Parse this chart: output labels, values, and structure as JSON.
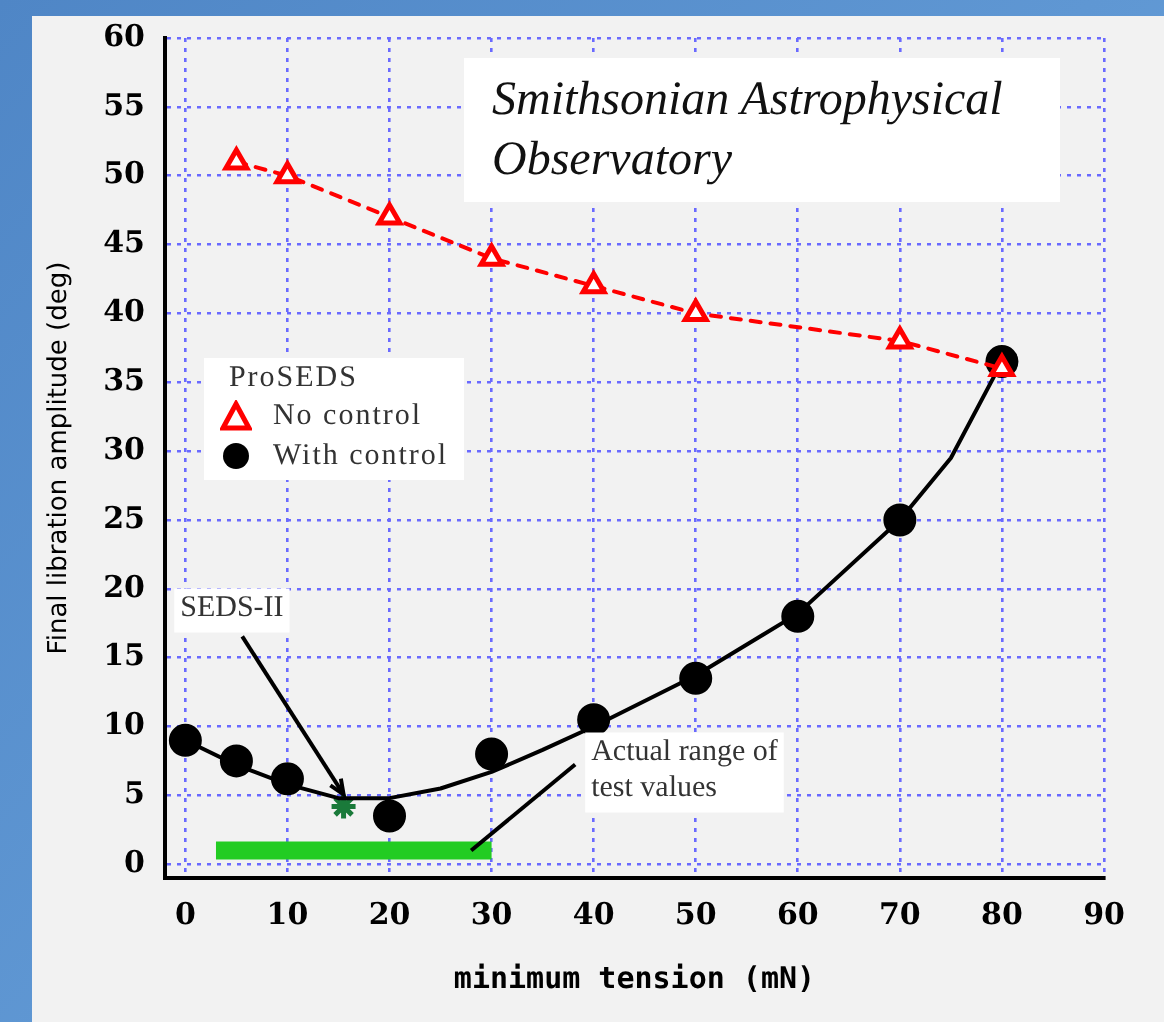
{
  "chart_data": {
    "type": "line",
    "xlabel": "minimum tension (mN)",
    "ylabel": "Final libration amplitude (deg)",
    "legend_title": "ProSEDS",
    "legend": "left",
    "grid": true,
    "xlim": [
      -2,
      90
    ],
    "xticks": [
      0,
      10,
      20,
      30,
      40,
      50,
      60,
      70,
      80,
      90
    ],
    "ylim": [
      -1,
      60
    ],
    "yticks": [
      0,
      5,
      10,
      15,
      20,
      25,
      30,
      35,
      40,
      45,
      50,
      55,
      60
    ],
    "annotations": [
      "Smithsonian Astrophysical Observatory",
      {
        "text": "SEDS-II",
        "x": 15.5,
        "y": 4.2
      },
      {
        "text": "Actual range of test values",
        "x": 28,
        "y": 1
      }
    ],
    "series": [
      {
        "name": "No control",
        "color": "#ff0000",
        "marker": "triangle",
        "line_style": "dashed",
        "x": [
          5,
          10,
          20,
          30,
          40,
          50,
          70,
          80
        ],
        "values": [
          51,
          50,
          47,
          44,
          42,
          40,
          38,
          36
        ]
      },
      {
        "name": "With control",
        "type": "scatter",
        "color": "#000000",
        "marker": "circle",
        "x": [
          0,
          5,
          10,
          20,
          30,
          40,
          50,
          60,
          70,
          80
        ],
        "values": [
          9,
          7.5,
          6.2,
          3.5,
          8,
          10.5,
          13.5,
          18,
          25,
          36.5
        ]
      },
      {
        "type": "line",
        "color": "#000000",
        "marker": "none",
        "line_style": "solid",
        "x": [
          0,
          5,
          10,
          15,
          20,
          25,
          30,
          35,
          40,
          50,
          60,
          70,
          75,
          80
        ],
        "values": [
          9,
          7.2,
          5.8,
          4.8,
          4.8,
          5.5,
          6.7,
          8.3,
          10,
          13.7,
          18.2,
          25,
          29.5,
          36.5
        ]
      },
      {
        "type": "scatter",
        "color": "#1a7a3a",
        "marker": "cross",
        "x": [
          15.5
        ],
        "values": [
          4.2
        ]
      },
      {
        "type": "line",
        "color": "#22cc22",
        "marker": "none",
        "line_style": "solid",
        "x": [
          3,
          30
        ],
        "values": [
          1,
          1
        ]
      }
    ]
  }
}
